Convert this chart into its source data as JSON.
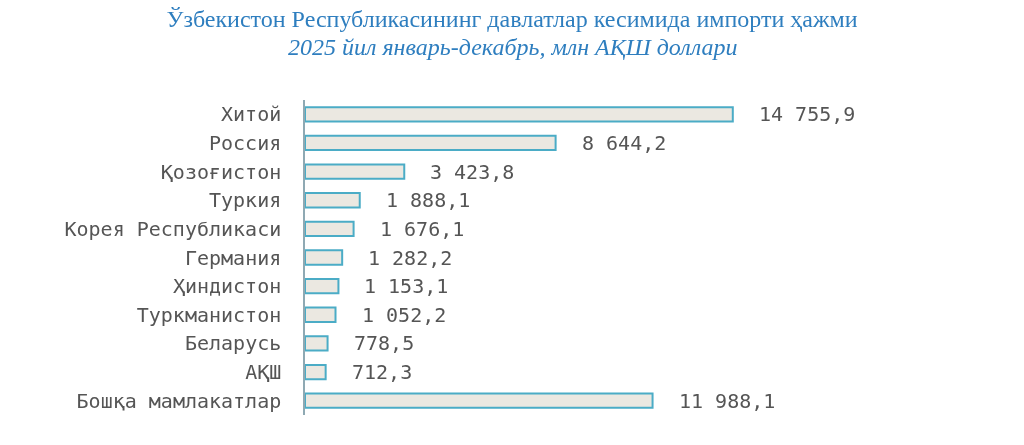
{
  "chart_data": {
    "type": "bar",
    "orientation": "horizontal",
    "title": "Ўзбекистон Республикасининг давлатлар кесимида импорти ҳажми",
    "subtitle": "2025 йил январь-декабрь, млн АҚШ доллари",
    "categories": [
      "Хитой",
      "Россия",
      "Қозоғистон",
      "Туркия",
      "Корея Республикаси",
      "Германия",
      "Ҳиндистон",
      "Туркманистон",
      "Беларусь",
      "АҚШ",
      "Бошқа мамлакатлар"
    ],
    "values": [
      14755.9,
      8644.2,
      3423.8,
      1888.1,
      1676.1,
      1282.2,
      1153.1,
      1052.2,
      778.5,
      712.3,
      11988.1
    ],
    "value_labels": [
      "14 755,9",
      "8 644,2",
      "3 423,8",
      "1 888,1",
      "1 676,1",
      "1 282,2",
      "1 153,1",
      "1 052,2",
      "778,5",
      "712,3",
      "11 988,1"
    ],
    "color": "#ebe8e1",
    "xlim": [
      0,
      24800
    ],
    "tick_labels": "y"
  }
}
